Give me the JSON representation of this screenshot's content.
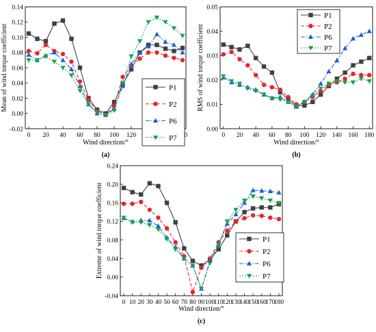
{
  "chart_data": [
    {
      "type": "line",
      "panel_label": "(a)",
      "title": "",
      "xlabel": "Wind direction/°",
      "ylabel": "Mean of wind torque coefficient",
      "xlim": [
        -4,
        184
      ],
      "ylim": [
        -0.02,
        0.14
      ],
      "xticks": [
        0,
        20,
        40,
        60,
        80,
        100,
        120,
        140,
        160,
        180
      ],
      "yticks": [
        -0.02,
        0.0,
        0.02,
        0.04,
        0.06,
        0.08,
        0.1,
        0.12,
        0.14
      ],
      "ytick_labels": [
        "-0.02",
        "0.00",
        "0.02",
        "0.04",
        "0.06",
        "0.08",
        "0.10",
        "0.12",
        "0.14"
      ],
      "legend_position": "center-right",
      "x": [
        0,
        10,
        20,
        30,
        40,
        50,
        60,
        70,
        80,
        90,
        100,
        110,
        120,
        130,
        140,
        150,
        160,
        170,
        180
      ],
      "series": [
        {
          "name": "P1",
          "color": "#404040",
          "marker": "square",
          "dash": "solid",
          "values": [
            0.105,
            0.098,
            0.095,
            0.118,
            0.122,
            0.098,
            0.06,
            0.02,
            0.005,
            0.0,
            0.015,
            0.038,
            0.058,
            0.08,
            0.09,
            0.09,
            0.085,
            0.082,
            0.086
          ]
        },
        {
          "name": "P2",
          "color": "#e8252b",
          "marker": "circle",
          "dash": "dash",
          "values": [
            0.082,
            0.079,
            0.09,
            0.082,
            0.078,
            0.068,
            0.042,
            0.018,
            0.003,
            -0.002,
            0.01,
            0.048,
            0.062,
            0.072,
            0.08,
            0.08,
            0.076,
            0.073,
            0.07
          ]
        },
        {
          "name": "P6",
          "color": "#1b5fd6",
          "marker": "triangle-up",
          "dash": "dashdot",
          "values": [
            0.077,
            0.07,
            0.076,
            0.08,
            0.07,
            0.058,
            0.036,
            0.012,
            0.0,
            -0.002,
            0.006,
            0.036,
            0.065,
            0.08,
            0.088,
            0.104,
            0.094,
            0.09,
            0.08
          ]
        },
        {
          "name": "P7",
          "color": "#16a34a",
          "marker": "triangle-down",
          "dash": "dot",
          "values": [
            0.07,
            0.07,
            0.075,
            0.068,
            0.06,
            0.05,
            0.03,
            0.012,
            0.002,
            -0.002,
            0.004,
            0.04,
            0.075,
            0.095,
            0.12,
            0.126,
            0.12,
            0.112,
            0.102
          ]
        }
      ]
    },
    {
      "type": "line",
      "panel_label": "(b)",
      "title": "",
      "xlabel": "Wind direction/°",
      "ylabel": "RMS of wind torque coefficient",
      "xlim": [
        -4,
        184
      ],
      "ylim": [
        0.0,
        0.05
      ],
      "xticks": [
        0,
        20,
        40,
        60,
        80,
        100,
        120,
        140,
        160,
        180
      ],
      "yticks": [
        0.0,
        0.01,
        0.02,
        0.03,
        0.04,
        0.05
      ],
      "ytick_labels": [
        "0.00",
        "0.01",
        "0.02",
        "0.03",
        "0.04",
        "0.05"
      ],
      "legend_position": "top-left",
      "x": [
        0,
        10,
        20,
        30,
        40,
        50,
        60,
        70,
        80,
        90,
        100,
        110,
        120,
        130,
        140,
        150,
        160,
        170,
        180
      ],
      "series": [
        {
          "name": "P1",
          "color": "#404040",
          "marker": "square",
          "dash": "solid",
          "values": [
            0.0345,
            0.0335,
            0.0325,
            0.034,
            0.029,
            0.0255,
            0.023,
            0.015,
            0.012,
            0.0095,
            0.0095,
            0.011,
            0.014,
            0.0175,
            0.0205,
            0.023,
            0.026,
            0.0275,
            0.029
          ]
        },
        {
          "name": "P2",
          "color": "#e8252b",
          "marker": "circle",
          "dash": "dash",
          "values": [
            0.0305,
            0.0315,
            0.0285,
            0.026,
            0.022,
            0.018,
            0.017,
            0.016,
            0.013,
            0.01,
            0.011,
            0.013,
            0.0155,
            0.018,
            0.019,
            0.0205,
            0.0225,
            0.022,
            0.022
          ]
        },
        {
          "name": "P6",
          "color": "#1b5fd6",
          "marker": "triangle-up",
          "dash": "dashdot",
          "values": [
            0.021,
            0.019,
            0.018,
            0.017,
            0.016,
            0.014,
            0.0125,
            0.013,
            0.011,
            0.009,
            0.011,
            0.014,
            0.0185,
            0.0235,
            0.028,
            0.033,
            0.037,
            0.0385,
            0.04
          ]
        },
        {
          "name": "P7",
          "color": "#16a34a",
          "marker": "triangle-down",
          "dash": "dot",
          "values": [
            0.0215,
            0.0195,
            0.0185,
            0.0165,
            0.0155,
            0.014,
            0.0125,
            0.012,
            0.011,
            0.009,
            0.011,
            0.0135,
            0.0165,
            0.0185,
            0.0195,
            0.019,
            0.019,
            0.0205,
            0.0195
          ]
        }
      ]
    },
    {
      "type": "line",
      "panel_label": "(c)",
      "title": "",
      "xlabel": "Wind direction/°",
      "ylabel": "Extreme of wind torque coefficient",
      "xlim": [
        -4,
        184
      ],
      "ylim": [
        -0.04,
        0.24
      ],
      "xticks": [
        0,
        10,
        20,
        30,
        40,
        50,
        60,
        70,
        80,
        90,
        100,
        110,
        120,
        130,
        140,
        150,
        160,
        170,
        180
      ],
      "yticks": [
        -0.04,
        0.0,
        0.04,
        0.08,
        0.12,
        0.16,
        0.2,
        0.24
      ],
      "ytick_labels": [
        "-0.04",
        "0.00",
        "0.04",
        "0.08",
        "0.12",
        "0.16",
        "0.20",
        "0.24"
      ],
      "legend_position": "center-right",
      "x": [
        0,
        10,
        20,
        30,
        40,
        50,
        60,
        70,
        80,
        90,
        100,
        110,
        120,
        130,
        140,
        150,
        160,
        170,
        180
      ],
      "series": [
        {
          "name": "P1",
          "color": "#404040",
          "marker": "square",
          "dash": "solid",
          "values": [
            0.192,
            0.183,
            0.178,
            0.202,
            0.196,
            0.16,
            0.118,
            0.062,
            0.035,
            0.025,
            0.038,
            0.06,
            0.09,
            0.12,
            0.14,
            0.148,
            0.15,
            0.15,
            0.157
          ]
        },
        {
          "name": "P2",
          "color": "#e8252b",
          "marker": "circle",
          "dash": "dash",
          "values": [
            0.158,
            0.158,
            0.162,
            0.145,
            0.128,
            0.105,
            0.075,
            0.045,
            -0.032,
            0.02,
            0.04,
            0.075,
            0.1,
            0.12,
            0.127,
            0.133,
            0.132,
            0.128,
            0.125
          ]
        },
        {
          "name": "P6",
          "color": "#1b5fd6",
          "marker": "triangle-up",
          "dash": "dashdot",
          "values": [
            0.127,
            0.12,
            0.122,
            0.122,
            0.11,
            0.085,
            0.065,
            0.04,
            0.025,
            -0.025,
            0.035,
            0.07,
            0.115,
            0.135,
            0.16,
            0.187,
            0.186,
            0.185,
            0.182
          ]
        },
        {
          "name": "P7",
          "color": "#16a34a",
          "marker": "triangle-down",
          "dash": "dot",
          "values": [
            0.128,
            0.118,
            0.118,
            0.112,
            0.103,
            0.082,
            0.06,
            0.04,
            0.025,
            -0.025,
            0.03,
            0.07,
            0.12,
            0.145,
            0.165,
            0.174,
            0.17,
            0.165,
            0.16
          ]
        }
      ]
    }
  ]
}
